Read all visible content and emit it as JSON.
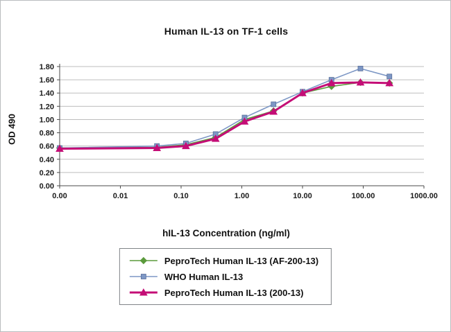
{
  "page": {
    "title": "Human IL-13 on TF-1 cells",
    "xlabel": "hIL-13 Concentration (ng/ml)",
    "ylabel": "OD 490"
  },
  "chart_data": {
    "type": "line",
    "title": "Human IL-13 on TF-1 cells",
    "xlabel": "hIL-13 Concentration (ng/ml)",
    "ylabel": "OD 490",
    "x_scale": "log",
    "grid": "horizontal",
    "legend_position": "bottom",
    "ylim": [
      0,
      1.8
    ],
    "y_ticks": [
      0.0,
      0.2,
      0.4,
      0.6,
      0.8,
      1.0,
      1.2,
      1.4,
      1.6,
      1.8
    ],
    "y_tick_labels": [
      "0.00",
      "0.20",
      "0.40",
      "0.60",
      "0.80",
      "1.00",
      "1.20",
      "1.40",
      "1.60",
      "1.80"
    ],
    "x_tick_values": [
      0,
      0.01,
      0.1,
      1,
      10,
      100,
      1000
    ],
    "x_tick_labels": [
      "0.00",
      "0.01",
      "0.10",
      "1.00",
      "10.00",
      "100.00",
      "1000.00"
    ],
    "x": [
      0,
      0.04,
      0.12,
      0.37,
      1.11,
      3.33,
      10,
      30,
      90,
      270
    ],
    "series": [
      {
        "name": "PeproTech Human IL-13 (AF-200-13)",
        "color": "#5b9a3c",
        "marker": "diamond",
        "line_width": 1.6,
        "values": [
          0.57,
          0.58,
          0.62,
          0.73,
          1.0,
          1.13,
          1.4,
          1.5,
          1.56,
          1.55
        ]
      },
      {
        "name": "WHO Human IL-13",
        "color": "#7d97c5",
        "marker": "square",
        "line_width": 1.6,
        "values": [
          0.57,
          0.6,
          0.64,
          0.78,
          1.03,
          1.23,
          1.42,
          1.6,
          1.77,
          1.65
        ]
      },
      {
        "name": "PeproTech Human IL-13 (200-13)",
        "color": "#c40d76",
        "marker": "triangle",
        "line_width": 3,
        "values": [
          0.56,
          0.57,
          0.6,
          0.71,
          0.97,
          1.12,
          1.4,
          1.55,
          1.56,
          1.55
        ]
      }
    ],
    "colors": {
      "gridline": "#bdbdbd",
      "axis": "#4a4a4a",
      "tick_text": "#1a1a1a"
    }
  }
}
